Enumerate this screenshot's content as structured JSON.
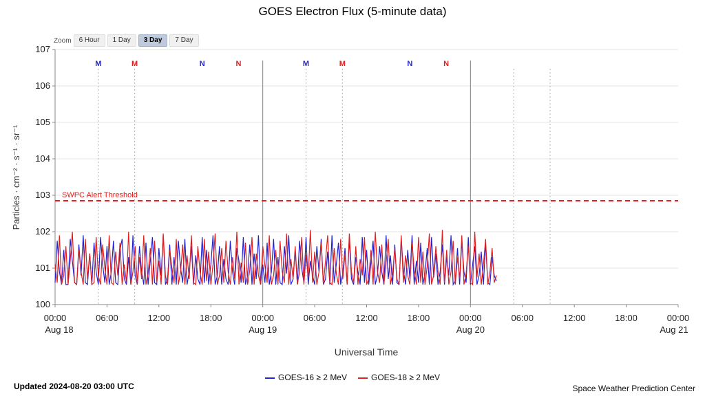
{
  "title": "GOES Electron Flux (5-minute data)",
  "zoom": {
    "label": "Zoom",
    "options": [
      {
        "label": "6 Hour",
        "active": false
      },
      {
        "label": "1 Day",
        "active": false
      },
      {
        "label": "3 Day",
        "active": true
      },
      {
        "label": "7 Day",
        "active": false
      }
    ]
  },
  "chart_data": {
    "type": "line",
    "title": "GOES Electron Flux (5-minute data)",
    "xlabel": "Universal Time",
    "ylabel": "Particles · cm⁻² · s⁻¹ · sr⁻¹",
    "y_scale": "log10",
    "y_exponent_range": [
      0,
      7
    ],
    "x_span_hours": 72,
    "x_ticks": [
      {
        "hours": 0,
        "time": "00:00",
        "date": "Aug 18"
      },
      {
        "hours": 6,
        "time": "06:00",
        "date": ""
      },
      {
        "hours": 12,
        "time": "12:00",
        "date": ""
      },
      {
        "hours": 18,
        "time": "18:00",
        "date": ""
      },
      {
        "hours": 24,
        "time": "00:00",
        "date": "Aug 19"
      },
      {
        "hours": 30,
        "time": "06:00",
        "date": ""
      },
      {
        "hours": 36,
        "time": "12:00",
        "date": ""
      },
      {
        "hours": 42,
        "time": "18:00",
        "date": ""
      },
      {
        "hours": 48,
        "time": "00:00",
        "date": "Aug 20"
      },
      {
        "hours": 54,
        "time": "06:00",
        "date": ""
      },
      {
        "hours": 60,
        "time": "12:00",
        "date": ""
      },
      {
        "hours": 66,
        "time": "18:00",
        "date": ""
      },
      {
        "hours": 72,
        "time": "00:00",
        "date": "Aug 21"
      }
    ],
    "y_ticks": [
      {
        "exp": 0,
        "label": "100"
      },
      {
        "exp": 1,
        "label": "101"
      },
      {
        "exp": 2,
        "label": "102"
      },
      {
        "exp": 3,
        "label": "103"
      },
      {
        "exp": 4,
        "label": "104"
      },
      {
        "exp": 5,
        "label": "105"
      },
      {
        "exp": 6,
        "label": "106"
      },
      {
        "exp": 7,
        "label": "107"
      }
    ],
    "day_boundary_hours": [
      24,
      48
    ],
    "satellite_midnight_lines_hours": [
      5,
      9.2,
      29,
      33.2,
      53,
      57.2
    ],
    "satellite_markers": [
      {
        "hours": 5,
        "label": "M",
        "series": "GOES-16"
      },
      {
        "hours": 9.2,
        "label": "M",
        "series": "GOES-18"
      },
      {
        "hours": 17,
        "label": "N",
        "series": "GOES-16"
      },
      {
        "hours": 21.2,
        "label": "N",
        "series": "GOES-18"
      },
      {
        "hours": 29,
        "label": "M",
        "series": "GOES-16"
      },
      {
        "hours": 33.2,
        "label": "M",
        "series": "GOES-18"
      },
      {
        "hours": 41,
        "label": "N",
        "series": "GOES-16"
      },
      {
        "hours": 45.2,
        "label": "N",
        "series": "GOES-18"
      }
    ],
    "threshold": {
      "label": "SWPC Alert Threshold",
      "log_value": 2.85,
      "color": "#e02020"
    },
    "series": [
      {
        "name": "GOES-16 ≥ 2 MeV",
        "color": "#2323d2",
        "start_hour": 0,
        "step_hours": 0.25,
        "log_values": [
          0.6,
          1.75,
          0.9,
          0.55,
          1.5,
          0.55,
          0.55,
          1.8,
          1.2,
          0.6,
          0.55,
          1.65,
          0.8,
          1.9,
          0.6,
          0.55,
          1.4,
          0.55,
          1.7,
          0.9,
          0.55,
          1.85,
          1.1,
          0.6,
          1.6,
          0.55,
          0.9,
          1.75,
          0.6,
          0.55,
          1.5,
          1.8,
          0.7,
          0.55,
          1.3,
          0.55,
          1.9,
          0.8,
          0.55,
          1.6,
          0.9,
          0.55,
          1.7,
          0.55,
          1.2,
          1.85,
          0.6,
          0.55,
          1.55,
          0.8,
          1.9,
          0.55,
          0.7,
          1.65,
          0.55,
          1.3,
          0.55,
          1.75,
          1.0,
          0.6,
          1.8,
          0.55,
          0.9,
          1.6,
          0.55,
          1.35,
          0.7,
          0.55,
          1.85,
          0.6,
          1.5,
          0.55,
          1.1,
          1.9,
          0.55,
          0.8,
          1.6,
          0.55,
          1.25,
          0.7,
          0.55,
          1.75,
          0.9,
          0.55,
          1.55,
          1.2,
          0.6,
          1.85,
          0.55,
          0.8,
          1.65,
          0.55,
          1.4,
          0.7,
          1.9,
          0.55,
          1.1,
          0.6,
          1.7,
          0.55,
          0.9,
          1.8,
          0.55,
          1.3,
          0.6,
          0.55,
          1.6,
          0.85,
          1.9,
          0.55,
          0.7,
          1.5,
          0.55,
          1.75,
          1.0,
          0.6,
          1.85,
          0.55,
          1.2,
          0.8,
          0.55,
          1.6,
          0.9,
          1.8,
          0.55,
          0.7,
          1.45,
          0.55,
          1.9,
          0.6,
          1.1,
          1.7,
          0.55,
          0.85,
          1.55,
          0.55,
          1.8,
          0.7,
          0.55,
          1.3,
          0.9,
          0.55,
          1.85,
          0.6,
          1.5,
          0.55,
          1.15,
          1.75,
          0.55,
          0.8,
          1.6,
          0.9,
          0.55,
          1.9,
          0.7,
          1.35,
          0.55,
          1.65,
          0.6,
          0.55,
          1.8,
          0.95,
          0.55,
          1.5,
          0.7,
          1.9,
          0.55,
          1.2,
          0.6,
          1.7,
          0.55,
          0.85,
          1.55,
          0.55,
          1.85,
          0.75,
          1.4,
          0.55,
          0.9,
          1.65,
          0.55,
          1.3,
          0.8,
          1.9,
          0.55,
          0.65,
          1.55,
          0.55,
          1.75,
          0.9,
          0.6,
          1.85,
          0.55,
          1.1,
          1.6,
          0.55,
          0.8,
          1.45,
          0.55,
          1.7,
          0.6,
          0.55,
          1.3,
          0.8,
          0.65
        ]
      },
      {
        "name": "GOES-18 ≥ 2 MeV",
        "color": "#e02020",
        "start_hour": 0,
        "step_hours": 0.25,
        "log_values": [
          1.1,
          0.6,
          1.9,
          0.55,
          0.8,
          1.6,
          0.55,
          1.2,
          2.0,
          0.6,
          0.55,
          1.5,
          0.9,
          0.55,
          1.8,
          0.7,
          1.4,
          0.55,
          0.6,
          1.85,
          0.8,
          0.55,
          1.65,
          1.0,
          0.55,
          1.9,
          0.6,
          0.55,
          1.45,
          0.8,
          1.7,
          0.55,
          1.1,
          0.6,
          2.0,
          0.55,
          0.9,
          1.6,
          0.55,
          1.3,
          0.7,
          1.9,
          0.55,
          0.85,
          1.55,
          0.55,
          1.75,
          0.6,
          1.2,
          0.55,
          1.95,
          0.8,
          0.55,
          1.5,
          1.0,
          0.6,
          1.8,
          0.55,
          0.9,
          1.65,
          0.55,
          1.35,
          0.7,
          1.9,
          0.6,
          0.55,
          1.6,
          0.9,
          0.55,
          1.8,
          0.65,
          1.45,
          0.55,
          1.1,
          1.95,
          0.55,
          0.8,
          1.55,
          0.6,
          1.75,
          0.9,
          0.55,
          1.3,
          0.7,
          2.0,
          0.55,
          1.15,
          0.6,
          1.7,
          0.55,
          0.95,
          1.85,
          0.55,
          1.4,
          0.8,
          0.55,
          1.6,
          1.05,
          0.6,
          1.9,
          0.55,
          0.8,
          1.5,
          0.55,
          1.75,
          0.9,
          0.6,
          1.95,
          0.55,
          1.25,
          0.7,
          1.6,
          0.55,
          0.9,
          1.85,
          0.55,
          1.35,
          0.75,
          2.05,
          0.6,
          1.45,
          0.55,
          0.9,
          1.7,
          0.55,
          1.2,
          1.9,
          0.6,
          0.55,
          1.55,
          0.85,
          0.55,
          1.8,
          0.7,
          1.4,
          0.55,
          1.95,
          0.9,
          0.6,
          1.6,
          0.55,
          1.25,
          0.8,
          1.85,
          0.55,
          0.7,
          1.5,
          0.55,
          2.0,
          0.9,
          0.6,
          1.65,
          0.55,
          1.15,
          1.8,
          0.55,
          0.85,
          1.55,
          0.7,
          0.55,
          1.9,
          0.6,
          1.35,
          0.8,
          0.55,
          1.7,
          0.95,
          0.55,
          1.85,
          0.6,
          1.45,
          0.55,
          1.05,
          1.95,
          0.55,
          0.8,
          1.6,
          0.9,
          0.55,
          2.05,
          0.6,
          1.5,
          0.55,
          0.9,
          1.75,
          0.55,
          1.3,
          0.7,
          1.9,
          0.55,
          0.85,
          1.6,
          0.6,
          0.55,
          2.0,
          0.75,
          1.4,
          0.55,
          1.1,
          1.8,
          0.55,
          0.9,
          1.55,
          0.6,
          0.8
        ]
      }
    ],
    "legend_position": "bottom"
  },
  "footer": {
    "updated": "Updated 2024-08-20 03:00 UTC",
    "credit": "Space Weather Prediction Center"
  }
}
